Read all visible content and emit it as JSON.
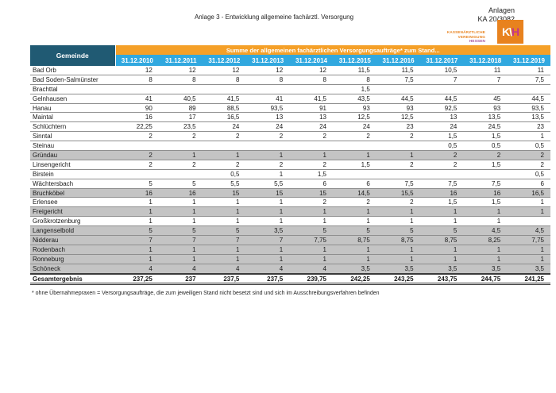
{
  "page": {
    "title": "Anlage 3 - Entwicklung allgemeine fachärztl. Versorgung",
    "annex_line1": "Anlagen",
    "annex_line2": "KA 20/3082",
    "footnote": "* ohne Übernahmepraxen = Versorgungsaufträge, die zum jeweiligen Stand nicht besetzt sind und sich im Ausschreibungsverfahren befinden"
  },
  "logo": {
    "org_line1": "KASSENÄRZTLICHE",
    "org_line2": "VEREINIGUNG",
    "org_line3": "HESSEN",
    "mark_left": "K\\",
    "mark_right": "H"
  },
  "colors": {
    "header_navy": "#205a73",
    "band_orange": "#f5a028",
    "band_blue": "#31a8df",
    "row_shaded": "#c4c4c4",
    "logo_orange": "#e8821e",
    "logo_purple": "#c2368c"
  },
  "table": {
    "col_header_gemeinde": "Gemeinde",
    "span_header": "Summe der allgemeinen fachärztlichen Versorgungsaufträge* zum Stand...",
    "years": [
      "31.12.2010",
      "31.12.2011",
      "31.12.2012",
      "31.12.2013",
      "31.12.2014",
      "31.12.2015",
      "31.12.2016",
      "31.12.2017",
      "31.12.2018",
      "31.12.2019"
    ],
    "rows": [
      {
        "name": "Bad Orb",
        "shaded": false,
        "total": false,
        "values": [
          "12",
          "12",
          "12",
          "12",
          "12",
          "11,5",
          "11,5",
          "10,5",
          "11",
          "11"
        ]
      },
      {
        "name": "Bad Soden-Salmünster",
        "shaded": false,
        "total": false,
        "values": [
          "8",
          "8",
          "8",
          "8",
          "8",
          "8",
          "7,5",
          "7",
          "7",
          "7,5"
        ]
      },
      {
        "name": "Brachttal",
        "shaded": false,
        "total": false,
        "values": [
          "",
          "",
          "",
          "",
          "",
          "1,5",
          "",
          "",
          "",
          ""
        ]
      },
      {
        "name": "Gelnhausen",
        "shaded": false,
        "total": false,
        "values": [
          "41",
          "40,5",
          "41,5",
          "41",
          "41,5",
          "43,5",
          "44,5",
          "44,5",
          "45",
          "44,5"
        ]
      },
      {
        "name": "Hanau",
        "shaded": false,
        "total": false,
        "values": [
          "90",
          "89",
          "88,5",
          "93,5",
          "91",
          "93",
          "93",
          "92,5",
          "93",
          "93,5"
        ]
      },
      {
        "name": "Maintal",
        "shaded": false,
        "total": false,
        "values": [
          "16",
          "17",
          "16,5",
          "13",
          "13",
          "12,5",
          "12,5",
          "13",
          "13,5",
          "13,5"
        ]
      },
      {
        "name": "Schlüchtern",
        "shaded": false,
        "total": false,
        "values": [
          "22,25",
          "23,5",
          "24",
          "24",
          "24",
          "24",
          "23",
          "24",
          "24,5",
          "23"
        ]
      },
      {
        "name": "Sinntal",
        "shaded": false,
        "total": false,
        "values": [
          "2",
          "2",
          "2",
          "2",
          "2",
          "2",
          "2",
          "1,5",
          "1,5",
          "1"
        ]
      },
      {
        "name": "Steinau",
        "shaded": false,
        "total": false,
        "values": [
          "",
          "",
          "",
          "",
          "",
          "",
          "",
          "0,5",
          "0,5",
          "0,5"
        ]
      },
      {
        "name": "Gründau",
        "shaded": true,
        "total": false,
        "values": [
          "2",
          "1",
          "1",
          "1",
          "1",
          "1",
          "1",
          "2",
          "2",
          "2"
        ]
      },
      {
        "name": "Linsengericht",
        "shaded": false,
        "total": false,
        "values": [
          "2",
          "2",
          "2",
          "2",
          "2",
          "1,5",
          "2",
          "2",
          "1,5",
          "2"
        ]
      },
      {
        "name": "Birstein",
        "shaded": false,
        "total": false,
        "values": [
          "",
          "",
          "0,5",
          "1",
          "1,5",
          "",
          "",
          "",
          "",
          "0,5"
        ]
      },
      {
        "name": "Wächtersbach",
        "shaded": false,
        "total": false,
        "values": [
          "5",
          "5",
          "5,5",
          "5,5",
          "6",
          "6",
          "7,5",
          "7,5",
          "7,5",
          "6"
        ]
      },
      {
        "name": "Bruchköbel",
        "shaded": true,
        "total": false,
        "values": [
          "16",
          "16",
          "15",
          "15",
          "15",
          "14,5",
          "15,5",
          "16",
          "16",
          "16,5"
        ]
      },
      {
        "name": "Erlensee",
        "shaded": false,
        "total": false,
        "values": [
          "1",
          "1",
          "1",
          "1",
          "2",
          "2",
          "2",
          "1,5",
          "1,5",
          "1"
        ]
      },
      {
        "name": "Freigericht",
        "shaded": true,
        "total": false,
        "values": [
          "1",
          "1",
          "1",
          "1",
          "1",
          "1",
          "1",
          "1",
          "1",
          "1"
        ]
      },
      {
        "name": "Großkrotzenburg",
        "shaded": false,
        "total": false,
        "values": [
          "1",
          "1",
          "1",
          "1",
          "1",
          "1",
          "1",
          "1",
          "1",
          ""
        ]
      },
      {
        "name": "Langenselbold",
        "shaded": true,
        "total": false,
        "values": [
          "5",
          "5",
          "5",
          "3,5",
          "5",
          "5",
          "5",
          "5",
          "4,5",
          "4,5"
        ]
      },
      {
        "name": "Nidderau",
        "shaded": true,
        "total": false,
        "values": [
          "7",
          "7",
          "7",
          "7",
          "7,75",
          "8,75",
          "8,75",
          "8,75",
          "8,25",
          "7,75"
        ]
      },
      {
        "name": "Rodenbach",
        "shaded": true,
        "total": false,
        "values": [
          "1",
          "1",
          "1",
          "1",
          "1",
          "1",
          "1",
          "1",
          "1",
          "1"
        ]
      },
      {
        "name": "Ronneburg",
        "shaded": true,
        "total": false,
        "values": [
          "1",
          "1",
          "1",
          "1",
          "1",
          "1",
          "1",
          "1",
          "1",
          "1"
        ]
      },
      {
        "name": "Schöneck",
        "shaded": true,
        "total": false,
        "values": [
          "4",
          "4",
          "4",
          "4",
          "4",
          "3,5",
          "3,5",
          "3,5",
          "3,5",
          "3,5"
        ]
      },
      {
        "name": "Gesamtergebnis",
        "shaded": false,
        "total": true,
        "values": [
          "237,25",
          "237",
          "237,5",
          "237,5",
          "239,75",
          "242,25",
          "243,25",
          "243,75",
          "244,75",
          "241,25"
        ]
      }
    ]
  }
}
